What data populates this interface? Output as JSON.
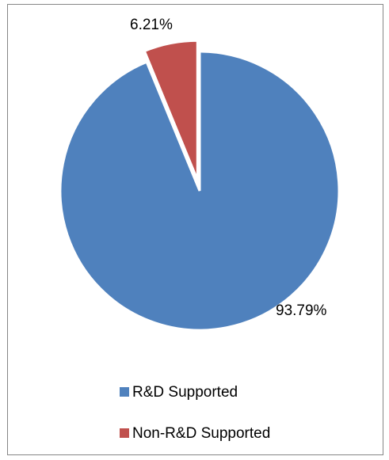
{
  "chart_data": {
    "type": "pie",
    "categories": [
      "R&D Supported",
      "Non-R&D Supported"
    ],
    "values": [
      93.79,
      6.21
    ],
    "data_labels": [
      "93.79%",
      "6.21%"
    ],
    "colors": [
      "#4f81bd",
      "#c0504d"
    ],
    "exploded_slice": "Non-R&D Supported",
    "start_angle": "12 o'clock",
    "direction": "clockwise",
    "legend_position": "bottom-left",
    "title": ""
  }
}
